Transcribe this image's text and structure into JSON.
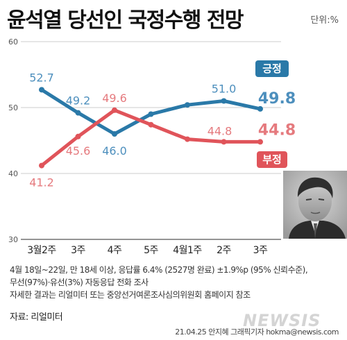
{
  "header": {
    "title": "윤석열 당선인 국정수행 전망",
    "unit": "단위:%"
  },
  "notes": [
    "4월 18일~22일, 만 18세 이상, 응답률 6.4% (2527명 완료) ±1.9%p (95% 신뢰수준),",
    "무선(97%)·유선(3%) 자동응답 전화 조사",
    "자세한 결과는 리얼미터 또는 중앙선거여론조사심의위원회 홈페이지 참조"
  ],
  "source": "자료: 리얼미터",
  "credit": "21.04.25 안지혜 그래픽기자 hokma@newsis.com",
  "watermark": "NEWSIS",
  "colors": {
    "positive": "#2a79a8",
    "negative": "#e0545a",
    "positive_label": "#4d8fbd",
    "negative_label": "#e57a7e"
  },
  "chart_data": {
    "type": "line",
    "categories": [
      "3월2주",
      "3주",
      "4주",
      "5주",
      "4월1주",
      "2주",
      "3주"
    ],
    "ylim": [
      30,
      60
    ],
    "yticks": [
      30,
      40,
      50,
      60
    ],
    "grid": true,
    "series": [
      {
        "name": "긍정",
        "color": "#2a79a8",
        "values": [
          52.7,
          49.2,
          46.0,
          49.0,
          50.4,
          51.0,
          49.8
        ],
        "labels": [
          "52.7",
          "49.2",
          "46.0",
          "",
          "",
          "51.0",
          "49.8"
        ]
      },
      {
        "name": "부정",
        "color": "#e0545a",
        "values": [
          41.2,
          45.6,
          49.6,
          47.4,
          45.2,
          44.8,
          44.8
        ],
        "labels": [
          "41.2",
          "45.6",
          "49.6",
          "",
          "",
          "44.8",
          "44.8"
        ]
      }
    ]
  }
}
